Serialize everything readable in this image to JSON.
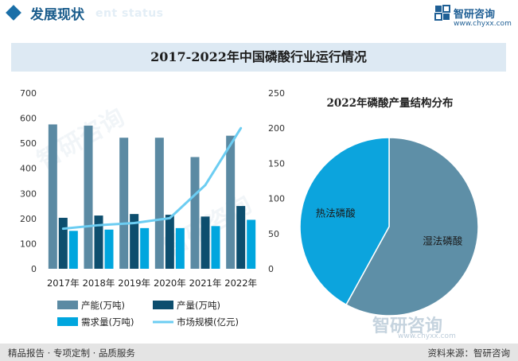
{
  "header": {
    "title": "发展现状",
    "subtitle": "ent status"
  },
  "brand": {
    "name": "智研咨询",
    "url": "www.chyxx.com",
    "watermark": "智研咨询"
  },
  "colors": {
    "capacity": "#5b8aa3",
    "output": "#0d4e6e",
    "demand": "#00a6de",
    "market": "#6ccdf2",
    "pie_wet": "#5e8fa7",
    "pie_thermal": "#0ca4dd",
    "title_band": "#dde9f3",
    "header_accent": "#1a6fa8"
  },
  "footer": {
    "left": "精品报告 · 专项定制 · 品质服务",
    "right": "资料来源：智研咨询"
  },
  "chart_data": [
    {
      "type": "bar",
      "title": "2017-2022年中国磷酸行业运行情况",
      "categories": [
        "2017年",
        "2018年",
        "2019年",
        "2020年",
        "2021年",
        "2022年"
      ],
      "y_left": {
        "lim": [
          0,
          700
        ],
        "ticks": [
          0,
          100,
          200,
          300,
          400,
          500,
          600,
          700
        ]
      },
      "y_right": {
        "lim": [
          0,
          250
        ],
        "ticks": [
          0,
          50,
          100,
          150,
          200,
          250
        ]
      },
      "grid": false,
      "legend_position": "bottom",
      "series": [
        {
          "name": "产能(万吨)",
          "kind": "bar",
          "axis": "left",
          "color_key": "capacity",
          "values": [
            575,
            570,
            522,
            522,
            445,
            530
          ]
        },
        {
          "name": "产量(万吨)",
          "kind": "bar",
          "axis": "left",
          "color_key": "output",
          "values": [
            203,
            212,
            218,
            215,
            208,
            250
          ]
        },
        {
          "name": "需求量(万吨)",
          "kind": "bar",
          "axis": "left",
          "color_key": "demand",
          "values": [
            151,
            156,
            162,
            162,
            170,
            195
          ]
        },
        {
          "name": "市场规模(亿元)",
          "kind": "line",
          "axis": "right",
          "color_key": "market",
          "values": [
            57,
            62,
            65,
            72,
            119,
            200
          ]
        }
      ]
    },
    {
      "type": "pie",
      "title": "2022年磷酸产量结构分布",
      "slices": [
        {
          "label": "湿法磷酸",
          "share": 0.58,
          "color_key": "pie_wet"
        },
        {
          "label": "热法磷酸",
          "share": 0.42,
          "color_key": "pie_thermal"
        }
      ]
    }
  ]
}
